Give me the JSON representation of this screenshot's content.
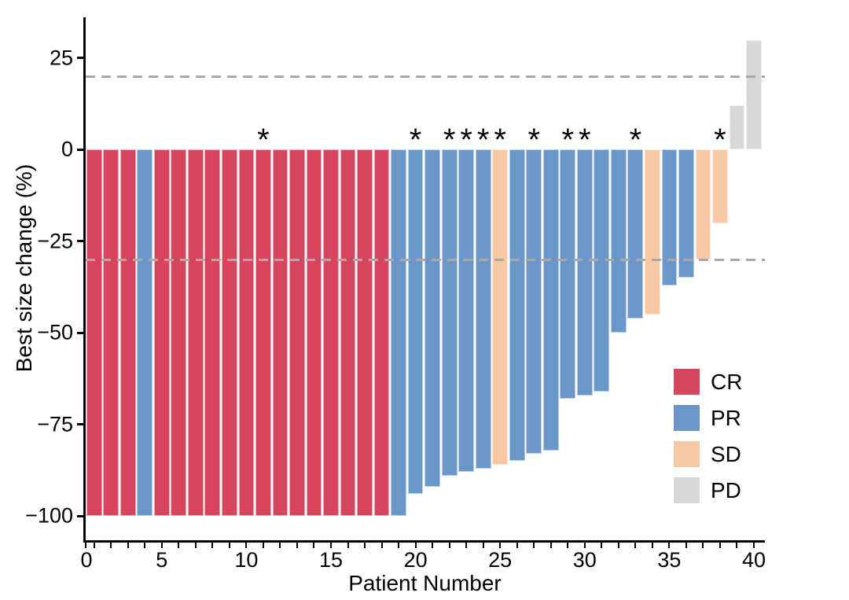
{
  "figure": {
    "background": "#ffffff",
    "text_color": "#000000",
    "refline_color": "#A9A9A9"
  },
  "chart_data": {
    "type": "bar",
    "title": "",
    "xlabel": "Patient Number",
    "ylabel": "Best size change (%)",
    "xlim": [
      0,
      41
    ],
    "ylim": [
      -106.5,
      36.5
    ],
    "grid": false,
    "x_tick_labels": [
      "0",
      "5",
      "10",
      "15",
      "20",
      "25",
      "30",
      "35",
      "40"
    ],
    "x_tick_label_values": [
      0,
      5,
      10,
      15,
      20,
      25,
      30,
      35,
      40
    ],
    "x_minor_tick_every": 1,
    "y_tick_labels": [
      "25",
      "0",
      "−25",
      "−50",
      "−75",
      "−100"
    ],
    "y_tick_values": [
      25,
      0,
      -25,
      -50,
      -75,
      -100
    ],
    "reference_lines": [
      20,
      -30
    ],
    "annotation_symbol": "*",
    "legend_position": "inside-right",
    "legend": [
      {
        "label": "CR",
        "color": "#D6455C"
      },
      {
        "label": "PR",
        "color": "#6A96C8"
      },
      {
        "label": "SD",
        "color": "#F8C7A4"
      },
      {
        "label": "PD",
        "color": "#D8D8D8"
      }
    ],
    "colors": {
      "CR": "#D6455C",
      "PR": "#6A96C8",
      "SD": "#F8C7A4",
      "PD": "#D8D8D8"
    },
    "patients": [
      {
        "patient": 1,
        "value": -100,
        "response": "CR",
        "annotated": false
      },
      {
        "patient": 2,
        "value": -100,
        "response": "CR",
        "annotated": false
      },
      {
        "patient": 3,
        "value": -100,
        "response": "CR",
        "annotated": false
      },
      {
        "patient": 4,
        "value": -100,
        "response": "PR",
        "annotated": false
      },
      {
        "patient": 5,
        "value": -100,
        "response": "CR",
        "annotated": false
      },
      {
        "patient": 6,
        "value": -100,
        "response": "CR",
        "annotated": false
      },
      {
        "patient": 7,
        "value": -100,
        "response": "CR",
        "annotated": false
      },
      {
        "patient": 8,
        "value": -100,
        "response": "CR",
        "annotated": false
      },
      {
        "patient": 9,
        "value": -100,
        "response": "CR",
        "annotated": false
      },
      {
        "patient": 10,
        "value": -100,
        "response": "CR",
        "annotated": false
      },
      {
        "patient": 11,
        "value": -100,
        "response": "CR",
        "annotated": true
      },
      {
        "patient": 12,
        "value": -100,
        "response": "CR",
        "annotated": false
      },
      {
        "patient": 13,
        "value": -100,
        "response": "CR",
        "annotated": false
      },
      {
        "patient": 14,
        "value": -100,
        "response": "CR",
        "annotated": false
      },
      {
        "patient": 15,
        "value": -100,
        "response": "CR",
        "annotated": false
      },
      {
        "patient": 16,
        "value": -100,
        "response": "CR",
        "annotated": false
      },
      {
        "patient": 17,
        "value": -100,
        "response": "CR",
        "annotated": false
      },
      {
        "patient": 18,
        "value": -100,
        "response": "CR",
        "annotated": false
      },
      {
        "patient": 19,
        "value": -100,
        "response": "PR",
        "annotated": false
      },
      {
        "patient": 20,
        "value": -94,
        "response": "PR",
        "annotated": true
      },
      {
        "patient": 21,
        "value": -92,
        "response": "PR",
        "annotated": false
      },
      {
        "patient": 22,
        "value": -89,
        "response": "PR",
        "annotated": true
      },
      {
        "patient": 23,
        "value": -88,
        "response": "PR",
        "annotated": true
      },
      {
        "patient": 24,
        "value": -87,
        "response": "PR",
        "annotated": true
      },
      {
        "patient": 25,
        "value": -86,
        "response": "SD",
        "annotated": true
      },
      {
        "patient": 26,
        "value": -85,
        "response": "PR",
        "annotated": false
      },
      {
        "patient": 27,
        "value": -83,
        "response": "PR",
        "annotated": true
      },
      {
        "patient": 28,
        "value": -82,
        "response": "PR",
        "annotated": false
      },
      {
        "patient": 29,
        "value": -68,
        "response": "PR",
        "annotated": true
      },
      {
        "patient": 30,
        "value": -67,
        "response": "PR",
        "annotated": true
      },
      {
        "patient": 31,
        "value": -66,
        "response": "PR",
        "annotated": false
      },
      {
        "patient": 32,
        "value": -50,
        "response": "PR",
        "annotated": false
      },
      {
        "patient": 33,
        "value": -46,
        "response": "PR",
        "annotated": true
      },
      {
        "patient": 34,
        "value": -45,
        "response": "SD",
        "annotated": false
      },
      {
        "patient": 35,
        "value": -37,
        "response": "PR",
        "annotated": false
      },
      {
        "patient": 36,
        "value": -35,
        "response": "PR",
        "annotated": false
      },
      {
        "patient": 37,
        "value": -30,
        "response": "SD",
        "annotated": false
      },
      {
        "patient": 38,
        "value": -20,
        "response": "SD",
        "annotated": true
      },
      {
        "patient": 39,
        "value": 12,
        "response": "PD",
        "annotated": false
      },
      {
        "patient": 40,
        "value": 30,
        "response": "PD",
        "annotated": false
      }
    ]
  }
}
